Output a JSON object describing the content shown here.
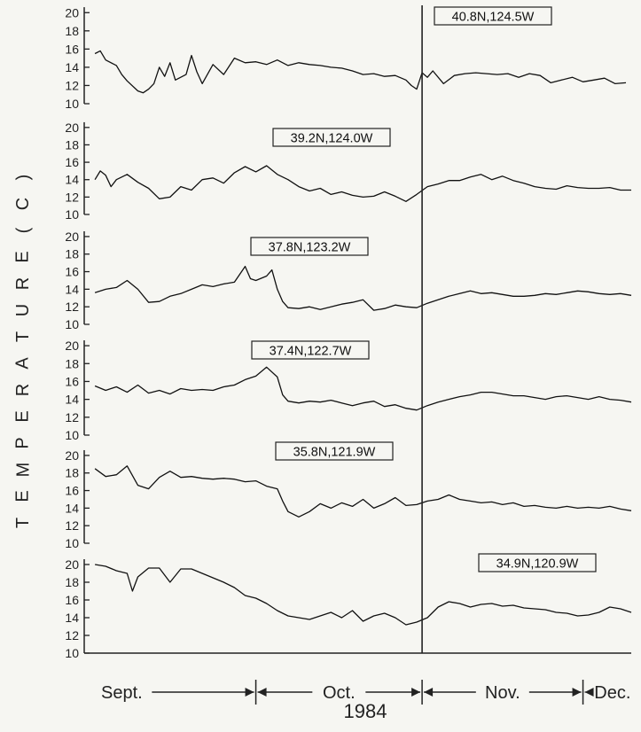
{
  "chart_data": {
    "type": "line",
    "ylabel": "TEMPERATURE (C)",
    "xaxis": {
      "months": [
        {
          "label": "Sept.",
          "start": 0,
          "end": 30
        },
        {
          "label": "Oct.",
          "start": 30,
          "end": 61
        },
        {
          "label": "Nov.",
          "start": 61,
          "end": 91
        },
        {
          "label": "Dec.",
          "start": 91,
          "end": 100
        }
      ],
      "year": "1984",
      "xlim": [
        -2,
        100
      ],
      "marker_day": 61
    },
    "panels": [
      {
        "station": "40.8N,124.5W",
        "yticks": [
          10,
          12,
          14,
          16,
          18,
          20
        ],
        "ylim": [
          10,
          21
        ],
        "x": [
          0,
          1,
          2,
          4,
          5,
          6,
          8,
          9,
          10,
          11,
          12,
          13,
          14,
          15,
          17,
          18,
          19,
          20,
          22,
          24,
          26,
          28,
          30,
          32,
          34,
          36,
          38,
          40,
          42,
          44,
          46,
          48,
          50,
          52,
          54,
          56,
          58,
          59,
          60,
          61,
          62,
          63,
          65,
          67,
          69,
          71,
          73,
          75,
          77,
          79,
          81,
          83,
          85,
          87,
          89,
          91,
          93,
          95,
          97,
          99
        ],
        "y": [
          15.5,
          15.8,
          14.8,
          14.2,
          13.2,
          12.5,
          11.4,
          11.2,
          11.6,
          12.2,
          14.0,
          13.0,
          14.5,
          12.6,
          13.2,
          15.3,
          13.5,
          12.2,
          14.3,
          13.2,
          15.0,
          14.5,
          14.6,
          14.3,
          14.8,
          14.2,
          14.5,
          14.3,
          14.2,
          14.0,
          13.9,
          13.6,
          13.2,
          13.3,
          13.0,
          13.1,
          12.6,
          12.0,
          11.6,
          13.4,
          12.9,
          13.6,
          12.2,
          13.1,
          13.3,
          13.4,
          13.3,
          13.2,
          13.3,
          12.9,
          13.3,
          13.1,
          12.3,
          12.6,
          12.9,
          12.4,
          12.6,
          12.8,
          12.2,
          12.3
        ]
      },
      {
        "station": "39.2N,124.0W",
        "yticks": [
          10,
          12,
          14,
          16,
          18,
          20
        ],
        "ylim": [
          10,
          21
        ],
        "x": [
          0,
          1,
          2,
          3,
          4,
          6,
          8,
          10,
          12,
          14,
          16,
          18,
          20,
          22,
          24,
          26,
          28,
          30,
          32,
          34,
          36,
          38,
          40,
          42,
          44,
          46,
          48,
          50,
          52,
          54,
          56,
          58,
          60,
          62,
          64,
          66,
          68,
          70,
          72,
          74,
          76,
          78,
          80,
          82,
          84,
          86,
          88,
          90,
          92,
          94,
          96,
          98,
          100
        ],
        "y": [
          14.0,
          15.0,
          14.5,
          13.2,
          14.0,
          14.6,
          13.7,
          13.0,
          11.8,
          12.0,
          13.2,
          12.8,
          14.0,
          14.2,
          13.6,
          14.8,
          15.5,
          14.9,
          15.6,
          14.6,
          14.0,
          13.2,
          12.7,
          13.0,
          12.3,
          12.6,
          12.2,
          12.0,
          12.1,
          12.6,
          12.1,
          11.5,
          12.3,
          13.2,
          13.5,
          13.9,
          13.9,
          14.3,
          14.6,
          14.0,
          14.4,
          13.9,
          13.6,
          13.2,
          13.0,
          12.9,
          13.3,
          13.1,
          13.0,
          13.0,
          13.1,
          12.8,
          12.8
        ]
      },
      {
        "station": "37.8N,123.2W",
        "yticks": [
          10,
          12,
          14,
          16,
          18,
          20
        ],
        "ylim": [
          10,
          21
        ],
        "x": [
          0,
          2,
          4,
          6,
          8,
          10,
          12,
          14,
          16,
          18,
          20,
          22,
          24,
          26,
          28,
          29,
          30,
          32,
          33,
          34,
          35,
          36,
          38,
          40,
          42,
          44,
          46,
          48,
          50,
          52,
          54,
          56,
          58,
          60,
          62,
          64,
          66,
          68,
          70,
          72,
          74,
          76,
          78,
          80,
          82,
          84,
          86,
          88,
          90,
          92,
          94,
          96,
          98,
          100
        ],
        "y": [
          13.6,
          14.0,
          14.2,
          15.0,
          14.0,
          12.5,
          12.6,
          13.2,
          13.5,
          14.0,
          14.5,
          14.3,
          14.6,
          14.8,
          16.6,
          15.2,
          15.0,
          15.5,
          16.2,
          14.0,
          12.6,
          11.9,
          11.8,
          12.0,
          11.7,
          12.0,
          12.3,
          12.5,
          12.8,
          11.6,
          11.8,
          12.2,
          12.0,
          11.9,
          12.4,
          12.8,
          13.2,
          13.5,
          13.8,
          13.5,
          13.6,
          13.4,
          13.2,
          13.2,
          13.3,
          13.5,
          13.4,
          13.6,
          13.8,
          13.7,
          13.5,
          13.4,
          13.5,
          13.3
        ]
      },
      {
        "station": "37.4N,122.7W",
        "yticks": [
          10,
          12,
          14,
          16,
          18,
          20
        ],
        "ylim": [
          10,
          21
        ],
        "x": [
          0,
          2,
          4,
          6,
          8,
          10,
          12,
          14,
          16,
          18,
          20,
          22,
          24,
          26,
          28,
          30,
          32,
          34,
          35,
          36,
          38,
          40,
          42,
          44,
          46,
          48,
          50,
          52,
          54,
          56,
          58,
          60,
          62,
          64,
          66,
          68,
          70,
          72,
          74,
          76,
          78,
          80,
          82,
          84,
          86,
          88,
          90,
          92,
          94,
          96,
          98,
          100
        ],
        "y": [
          15.5,
          15.0,
          15.4,
          14.8,
          15.6,
          14.7,
          15.0,
          14.6,
          15.2,
          15.0,
          15.1,
          15.0,
          15.4,
          15.6,
          16.2,
          16.6,
          17.6,
          16.5,
          14.5,
          13.8,
          13.6,
          13.8,
          13.7,
          13.9,
          13.6,
          13.3,
          13.6,
          13.8,
          13.2,
          13.4,
          13.0,
          12.8,
          13.3,
          13.7,
          14.0,
          14.3,
          14.5,
          14.8,
          14.8,
          14.6,
          14.4,
          14.4,
          14.2,
          14.0,
          14.3,
          14.4,
          14.2,
          14.0,
          14.3,
          14.0,
          13.9,
          13.7
        ]
      },
      {
        "station": "35.8N,121.9W",
        "yticks": [
          10,
          12,
          14,
          16,
          18,
          20
        ],
        "ylim": [
          10,
          21
        ],
        "x": [
          0,
          2,
          4,
          6,
          8,
          10,
          12,
          14,
          16,
          18,
          20,
          22,
          24,
          26,
          28,
          30,
          32,
          34,
          35,
          36,
          38,
          40,
          42,
          44,
          46,
          48,
          50,
          52,
          54,
          56,
          58,
          60,
          62,
          64,
          66,
          68,
          70,
          72,
          74,
          76,
          78,
          80,
          82,
          84,
          86,
          88,
          90,
          92,
          94,
          96,
          98,
          100
        ],
        "y": [
          18.5,
          17.6,
          17.8,
          18.8,
          16.6,
          16.2,
          17.5,
          18.2,
          17.5,
          17.6,
          17.4,
          17.3,
          17.4,
          17.3,
          17.0,
          17.1,
          16.5,
          16.2,
          14.8,
          13.6,
          13.0,
          13.6,
          14.5,
          14.0,
          14.6,
          14.2,
          15.0,
          14.0,
          14.5,
          15.2,
          14.3,
          14.4,
          14.8,
          15.0,
          15.5,
          15.0,
          14.8,
          14.6,
          14.7,
          14.4,
          14.6,
          14.2,
          14.3,
          14.1,
          14.0,
          14.2,
          14.0,
          14.1,
          14.0,
          14.2,
          13.9,
          13.7
        ]
      },
      {
        "station": "34.9N,120.9W",
        "yticks": [
          10,
          12,
          14,
          16,
          18,
          20
        ],
        "ylim": [
          10,
          21
        ],
        "x": [
          0,
          2,
          4,
          6,
          7,
          8,
          10,
          12,
          14,
          16,
          18,
          20,
          22,
          24,
          26,
          28,
          30,
          32,
          34,
          36,
          38,
          40,
          42,
          44,
          46,
          48,
          50,
          52,
          54,
          56,
          58,
          60,
          62,
          64,
          66,
          68,
          70,
          72,
          74,
          76,
          78,
          80,
          82,
          84,
          86,
          88,
          90,
          92,
          94,
          96,
          98,
          100
        ],
        "y": [
          20.0,
          19.8,
          19.3,
          19.0,
          17.0,
          18.6,
          19.6,
          19.6,
          18.0,
          19.5,
          19.5,
          19.0,
          18.5,
          18.0,
          17.4,
          16.5,
          16.2,
          15.6,
          14.8,
          14.2,
          14.0,
          13.8,
          14.2,
          14.6,
          14.0,
          14.8,
          13.6,
          14.2,
          14.5,
          14.0,
          13.2,
          13.5,
          14.0,
          15.2,
          15.8,
          15.6,
          15.2,
          15.5,
          15.6,
          15.3,
          15.4,
          15.1,
          15.0,
          14.9,
          14.6,
          14.5,
          14.2,
          14.3,
          14.6,
          15.2,
          15.0,
          14.6
        ]
      }
    ]
  }
}
